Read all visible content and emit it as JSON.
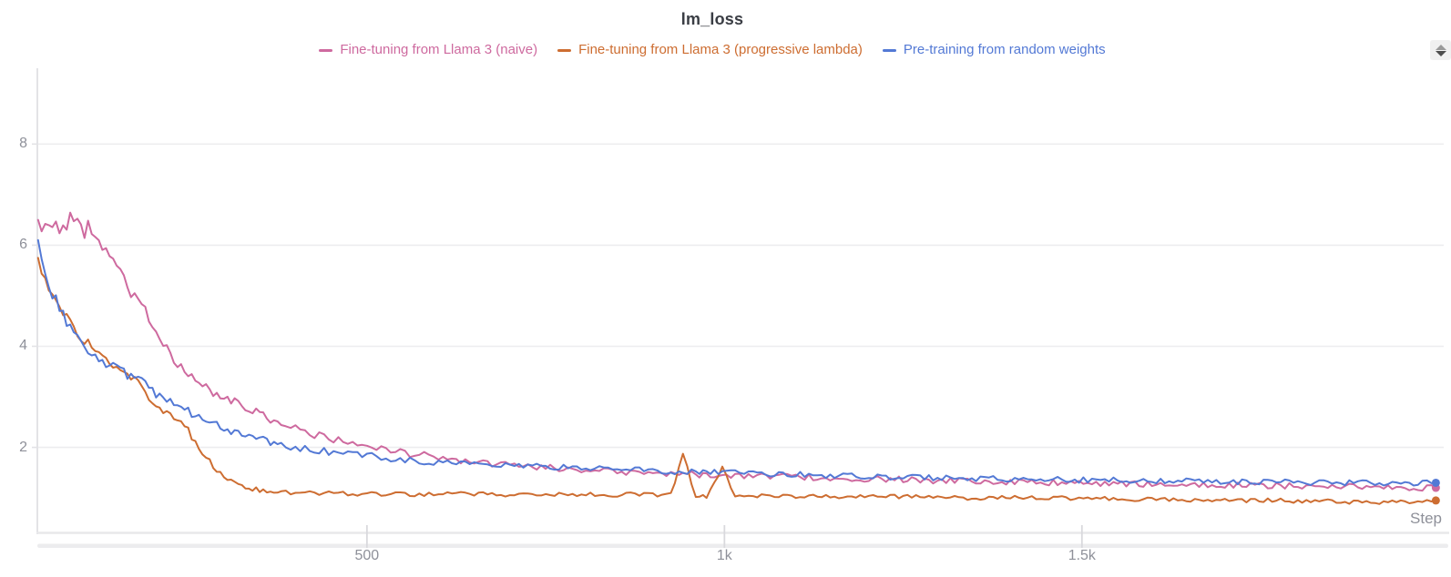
{
  "title": "lm_loss",
  "xlabel": "Step",
  "icons": {
    "panel_stepper": "up-down-arrows"
  },
  "colors": {
    "background": "#ffffff",
    "grid": "#ededef",
    "axis": "#e3e3e6",
    "axis_bottom": "#e8e8ea",
    "scrollbar_track": "#ececee",
    "tick_mark": "#d9d9dd",
    "tick_text": "#8e9099",
    "title_text": "#3a3d44"
  },
  "chart_data": {
    "type": "line",
    "title": "lm_loss",
    "xlabel": "Step",
    "ylabel": "",
    "xlim": [
      39,
      2006
    ],
    "ylim": [
      0.3,
      9.5
    ],
    "grid": "horizontal",
    "legend_position": "top-center",
    "x_ticks": [
      {
        "value": 500,
        "label": "500"
      },
      {
        "value": 1000,
        "label": "1k"
      },
      {
        "value": 1500,
        "label": "1.5k"
      }
    ],
    "y_ticks": [
      {
        "value": 8,
        "label": "8"
      },
      {
        "value": 6,
        "label": "6"
      },
      {
        "value": 4,
        "label": "4"
      },
      {
        "value": 2,
        "label": "2"
      }
    ],
    "x": [
      40,
      50,
      60,
      70,
      80,
      90,
      100,
      110,
      120,
      130,
      140,
      150,
      160,
      170,
      180,
      190,
      200,
      215,
      230,
      245,
      260,
      275,
      290,
      305,
      320,
      335,
      350,
      365,
      380,
      400,
      420,
      440,
      460,
      480,
      500,
      520,
      540,
      560,
      580,
      600,
      625,
      650,
      675,
      700,
      725,
      750,
      775,
      800,
      825,
      850,
      875,
      900,
      925,
      942,
      960,
      975,
      997,
      1015,
      1040,
      1070,
      1100,
      1130,
      1160,
      1190,
      1220,
      1250,
      1280,
      1310,
      1340,
      1370,
      1400,
      1430,
      1460,
      1490,
      1520,
      1550,
      1580,
      1610,
      1640,
      1670,
      1700,
      1730,
      1760,
      1790,
      1820,
      1850,
      1880,
      1910,
      1940,
      1970,
      1995
    ],
    "series": [
      {
        "name": "Fine-tuning from Llama 3 (naive)",
        "color": "#ce6a9f",
        "noise": 0.07,
        "end_marker": true,
        "values": [
          6.5,
          6.32,
          6.45,
          6.22,
          6.4,
          6.55,
          6.28,
          6.32,
          6.1,
          5.9,
          5.7,
          5.52,
          5.3,
          5.1,
          4.9,
          4.68,
          4.45,
          4.1,
          3.78,
          3.5,
          3.35,
          3.18,
          3.08,
          3.0,
          2.88,
          2.78,
          2.68,
          2.57,
          2.48,
          2.36,
          2.28,
          2.2,
          2.14,
          2.1,
          2.05,
          1.98,
          1.93,
          1.88,
          1.84,
          1.8,
          1.75,
          1.71,
          1.68,
          1.65,
          1.62,
          1.6,
          1.58,
          1.56,
          1.54,
          1.53,
          1.51,
          1.5,
          1.49,
          1.48,
          1.47,
          1.46,
          1.45,
          1.44,
          1.43,
          1.42,
          1.41,
          1.4,
          1.39,
          1.38,
          1.37,
          1.36,
          1.35,
          1.34,
          1.33,
          1.32,
          1.32,
          1.31,
          1.3,
          1.3,
          1.29,
          1.28,
          1.28,
          1.27,
          1.26,
          1.26,
          1.25,
          1.25,
          1.24,
          1.24,
          1.23,
          1.23,
          1.22,
          1.21,
          1.21,
          1.2,
          1.2
        ]
      },
      {
        "name": "Fine-tuning from Llama 3 (progressive lambda)",
        "color": "#cd6d31",
        "noise": 0.055,
        "end_marker": true,
        "values": [
          5.75,
          5.3,
          5.08,
          4.86,
          4.55,
          4.33,
          4.18,
          4.05,
          3.9,
          3.78,
          3.68,
          3.58,
          3.5,
          3.42,
          3.3,
          3.1,
          2.92,
          2.72,
          2.62,
          2.45,
          2.1,
          1.8,
          1.55,
          1.35,
          1.25,
          1.2,
          1.16,
          1.13,
          1.12,
          1.1,
          1.12,
          1.08,
          1.1,
          1.05,
          1.08,
          1.06,
          1.1,
          1.05,
          1.08,
          1.06,
          1.1,
          1.07,
          1.09,
          1.06,
          1.08,
          1.05,
          1.07,
          1.05,
          1.08,
          1.06,
          1.07,
          1.05,
          1.06,
          1.85,
          1.05,
          1.04,
          1.6,
          1.05,
          1.04,
          1.05,
          1.03,
          1.04,
          1.02,
          1.03,
          1.02,
          1.03,
          1.01,
          1.02,
          1.0,
          1.01,
          1.0,
          1.0,
          0.99,
          1.0,
          0.98,
          0.99,
          0.97,
          0.98,
          0.96,
          0.97,
          0.96,
          0.95,
          0.96,
          0.94,
          0.95,
          0.93,
          0.92,
          0.9,
          0.93,
          0.92,
          0.95
        ]
      },
      {
        "name": "Pre-training from random weights",
        "color": "#5379d5",
        "noise": 0.065,
        "end_marker": true,
        "values": [
          6.1,
          5.5,
          5.05,
          4.73,
          4.5,
          4.25,
          4.05,
          3.92,
          3.8,
          3.72,
          3.63,
          3.55,
          3.48,
          3.42,
          3.35,
          3.25,
          3.12,
          2.97,
          2.84,
          2.74,
          2.64,
          2.54,
          2.44,
          2.35,
          2.28,
          2.22,
          2.16,
          2.1,
          2.06,
          2.0,
          1.96,
          1.92,
          1.89,
          1.87,
          1.85,
          1.8,
          1.77,
          1.74,
          1.72,
          1.7,
          1.68,
          1.66,
          1.65,
          1.63,
          1.62,
          1.61,
          1.6,
          1.58,
          1.57,
          1.56,
          1.55,
          1.54,
          1.53,
          1.52,
          1.51,
          1.51,
          1.5,
          1.49,
          1.48,
          1.47,
          1.46,
          1.45,
          1.44,
          1.43,
          1.42,
          1.41,
          1.4,
          1.4,
          1.39,
          1.38,
          1.38,
          1.37,
          1.36,
          1.36,
          1.35,
          1.35,
          1.34,
          1.34,
          1.33,
          1.33,
          1.32,
          1.32,
          1.32,
          1.31,
          1.31,
          1.31,
          1.3,
          1.3,
          1.3,
          1.3,
          1.3
        ]
      }
    ]
  }
}
